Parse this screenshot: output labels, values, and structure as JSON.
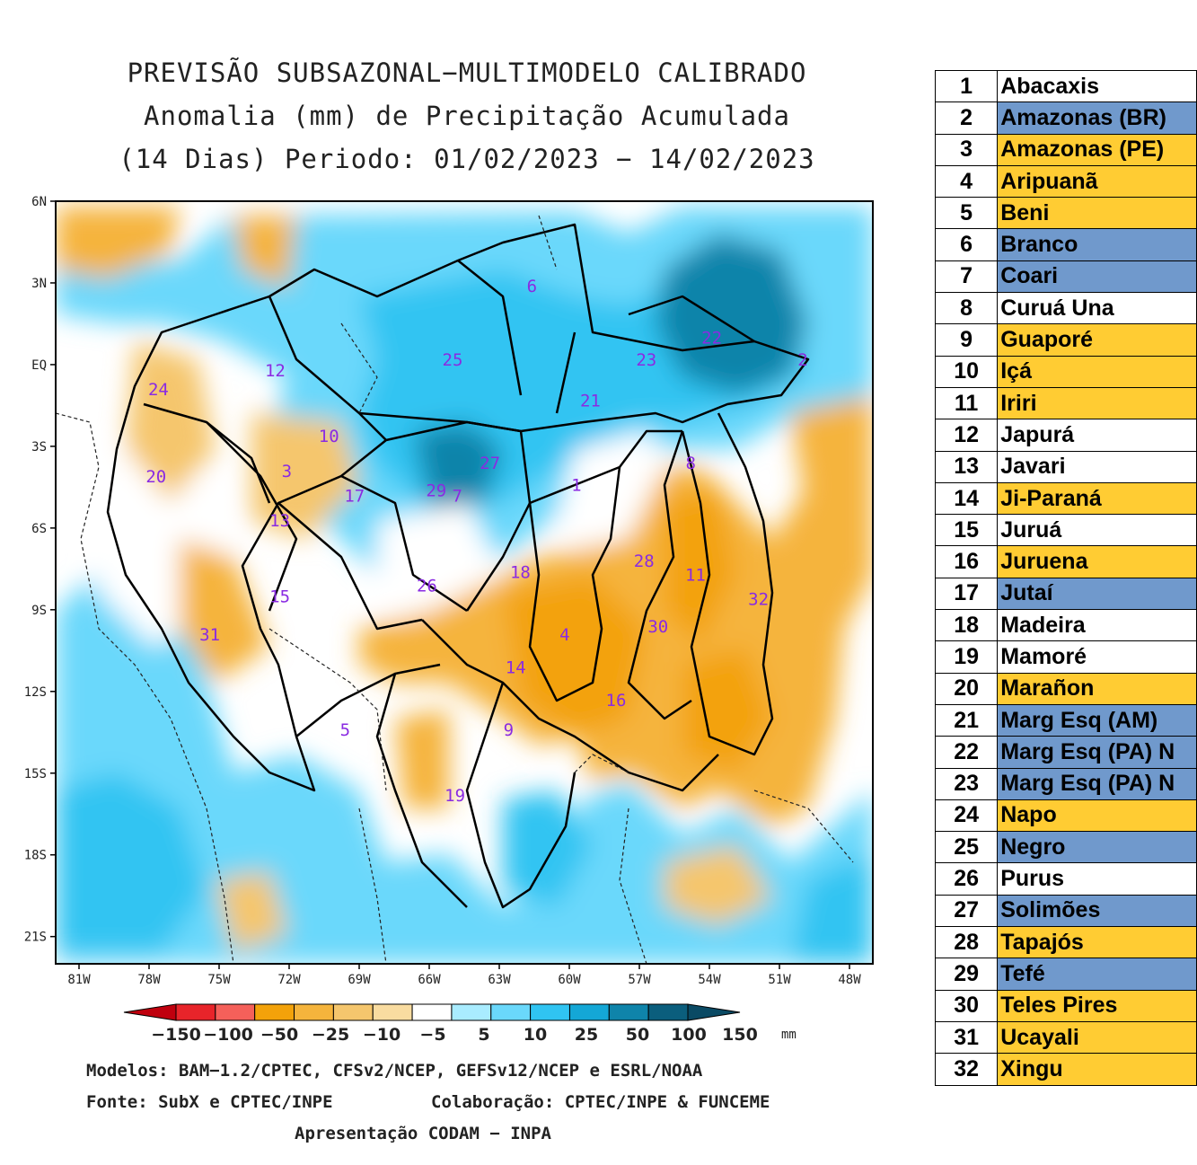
{
  "header": {
    "title_line1": "PREVISÃO SUBSAZONAL−MULTIMODELO CALIBRADO",
    "title_line2": "Anomalia (mm) de Precipitação Acumulada",
    "title_line3": "(14 Dias) Periodo: 01/02/2023 − 14/02/2023"
  },
  "map": {
    "lat_labels": [
      "6N",
      "3N",
      "EQ",
      "3S",
      "6S",
      "9S",
      "12S",
      "15S",
      "18S",
      "21S"
    ],
    "lon_labels": [
      "81W",
      "78W",
      "75W",
      "72W",
      "69W",
      "66W",
      "63W",
      "60W",
      "57W",
      "54W",
      "51W",
      "48W"
    ],
    "basin_markers": [
      {
        "label": "1",
        "lon": -59.7,
        "lat": -4.4
      },
      {
        "label": "2",
        "lon": -50.0,
        "lat": 0.2
      },
      {
        "label": "3",
        "lon": -72.1,
        "lat": -3.9
      },
      {
        "label": "4",
        "lon": -60.2,
        "lat": -9.9
      },
      {
        "label": "5",
        "lon": -69.6,
        "lat": -13.4
      },
      {
        "label": "6",
        "lon": -61.6,
        "lat": 2.9
      },
      {
        "label": "7",
        "lon": -64.8,
        "lat": -4.8
      },
      {
        "label": "8",
        "lon": -54.8,
        "lat": -3.6
      },
      {
        "label": "9",
        "lon": -62.6,
        "lat": -13.4
      },
      {
        "label": "10",
        "lon": -70.3,
        "lat": -2.6
      },
      {
        "label": "11",
        "lon": -54.6,
        "lat": -7.7
      },
      {
        "label": "12",
        "lon": -72.6,
        "lat": -0.2
      },
      {
        "label": "13",
        "lon": -72.4,
        "lat": -5.7
      },
      {
        "label": "14",
        "lon": -62.3,
        "lat": -11.1
      },
      {
        "label": "15",
        "lon": -72.4,
        "lat": -8.5
      },
      {
        "label": "16",
        "lon": -58.0,
        "lat": -12.3
      },
      {
        "label": "17",
        "lon": -69.2,
        "lat": -4.8
      },
      {
        "label": "18",
        "lon": -62.1,
        "lat": -7.6
      },
      {
        "label": "19",
        "lon": -64.9,
        "lat": -15.8
      },
      {
        "label": "20",
        "lon": -77.7,
        "lat": -4.1
      },
      {
        "label": "21",
        "lon": -59.1,
        "lat": -1.3
      },
      {
        "label": "22",
        "lon": -53.9,
        "lat": 1.0
      },
      {
        "label": "23",
        "lon": -56.7,
        "lat": 0.2
      },
      {
        "label": "24",
        "lon": -77.6,
        "lat": -0.9
      },
      {
        "label": "25",
        "lon": -65.0,
        "lat": 0.2
      },
      {
        "label": "26",
        "lon": -66.1,
        "lat": -8.1
      },
      {
        "label": "27",
        "lon": -63.4,
        "lat": -3.6
      },
      {
        "label": "28",
        "lon": -56.8,
        "lat": -7.2
      },
      {
        "label": "29",
        "lon": -65.7,
        "lat": -4.6
      },
      {
        "label": "30",
        "lon": -56.2,
        "lat": -9.6
      },
      {
        "label": "31",
        "lon": -75.4,
        "lat": -9.9
      },
      {
        "label": "32",
        "lon": -51.9,
        "lat": -8.6
      }
    ]
  },
  "legend": {
    "tick_labels": [
      "−150",
      "−100",
      "−50",
      "−25",
      "−10",
      "−5",
      "5",
      "10",
      "25",
      "50",
      "100",
      "150"
    ],
    "unit": "mm",
    "colors": [
      "#c0000e",
      "#e8242a",
      "#f5605a",
      "#f3a20a",
      "#f5b43c",
      "#f5c66d",
      "#f9dca0",
      "#ffffff",
      "#a9ecff",
      "#6ad8fb",
      "#30c4f2",
      "#14a7d6",
      "#0f84aa",
      "#0b5e7d",
      "#0a4a64"
    ]
  },
  "footer": {
    "models": "Modelos: BAM−1.2/CPTEC, CFSv2/NCEP, GEFSv12/NCEP e ESRL/NOAA",
    "source": "Fonte: SubX e CPTEC/INPE",
    "collab": "Colaboração: CPTEC/INPE & FUNCEME",
    "presentation": "Apresentação CODAM − INPA"
  },
  "basins": [
    {
      "num": "1",
      "name": "Abacaxis",
      "color": "#ffffff"
    },
    {
      "num": "2",
      "name": "Amazonas (BR)",
      "color": "#7099cc"
    },
    {
      "num": "3",
      "name": "Amazonas (PE)",
      "color": "#ffcc33"
    },
    {
      "num": "4",
      "name": "Aripuanã",
      "color": "#ffcc33"
    },
    {
      "num": "5",
      "name": "Beni",
      "color": "#ffcc33"
    },
    {
      "num": "6",
      "name": "Branco",
      "color": "#7099cc"
    },
    {
      "num": "7",
      "name": "Coari",
      "color": "#7099cc"
    },
    {
      "num": "8",
      "name": "Curuá Una",
      "color": "#ffffff"
    },
    {
      "num": "9",
      "name": "Guaporé",
      "color": "#ffcc33"
    },
    {
      "num": "10",
      "name": "Içá",
      "color": "#ffcc33"
    },
    {
      "num": "11",
      "name": "Iriri",
      "color": "#ffcc33"
    },
    {
      "num": "12",
      "name": "Japurá",
      "color": "#ffffff"
    },
    {
      "num": "13",
      "name": "Javari",
      "color": "#ffffff"
    },
    {
      "num": "14",
      "name": "Ji-Paraná",
      "color": "#ffcc33"
    },
    {
      "num": "15",
      "name": "Juruá",
      "color": "#ffffff"
    },
    {
      "num": "16",
      "name": "Juruena",
      "color": "#ffcc33"
    },
    {
      "num": "17",
      "name": "Jutaí",
      "color": "#7099cc"
    },
    {
      "num": "18",
      "name": "Madeira",
      "color": "#ffffff"
    },
    {
      "num": "19",
      "name": "Mamoré",
      "color": "#ffffff"
    },
    {
      "num": "20",
      "name": "Marañon",
      "color": "#ffcc33"
    },
    {
      "num": "21",
      "name": "Marg Esq (AM)",
      "color": "#7099cc"
    },
    {
      "num": "22",
      "name": "Marg Esq (PA) N",
      "color": "#7099cc"
    },
    {
      "num": "23",
      "name": "Marg Esq (PA) N",
      "color": "#7099cc"
    },
    {
      "num": "24",
      "name": "Napo",
      "color": "#ffcc33"
    },
    {
      "num": "25",
      "name": "Negro",
      "color": "#7099cc"
    },
    {
      "num": "26",
      "name": "Purus",
      "color": "#ffffff"
    },
    {
      "num": "27",
      "name": "Solimões",
      "color": "#7099cc"
    },
    {
      "num": "28",
      "name": "Tapajós",
      "color": "#ffcc33"
    },
    {
      "num": "29",
      "name": "Tefé",
      "color": "#7099cc"
    },
    {
      "num": "30",
      "name": "Teles Pires",
      "color": "#ffcc33"
    },
    {
      "num": "31",
      "name": "Ucayali",
      "color": "#ffcc33"
    },
    {
      "num": "32",
      "name": "Xingu",
      "color": "#ffcc33"
    }
  ]
}
